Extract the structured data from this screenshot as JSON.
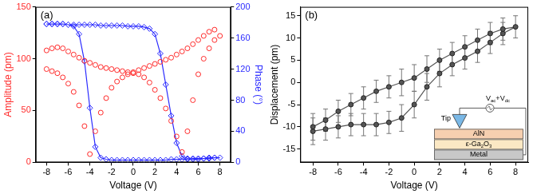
{
  "chart_data": [
    {
      "type": "scatter",
      "title": "(a)",
      "x_label": "Voltage (V)",
      "y_label": "Amplitude (pm)",
      "y2_label": "Phase (°)",
      "x": [
        -8,
        -7.5,
        -7,
        -6.5,
        -6,
        -5.5,
        -5,
        -4.5,
        -4,
        -3.5,
        -3,
        -2.5,
        -2,
        -1.5,
        -1,
        -0.5,
        0,
        0.5,
        1,
        1.5,
        2,
        2.5,
        3,
        3.5,
        4,
        4.5,
        5,
        5.5,
        6,
        6.5,
        7,
        7.5,
        8,
        7.5,
        7,
        6.5,
        6,
        5.5,
        5,
        4.5,
        4,
        3.5,
        3,
        2.5,
        2,
        1.5,
        1,
        0.5,
        0,
        -0.5,
        -1,
        -1.5,
        -2,
        -2.5,
        -3,
        -3.5,
        -4,
        -4.5,
        -5,
        -5.5,
        -6,
        -6.5,
        -7,
        -7.5,
        -8
      ],
      "series": [
        {
          "name": "Amplitude",
          "color": "#ff2a2a",
          "marker": "open circle",
          "line_style": "none",
          "values": [
            108,
            110,
            111,
            110,
            107,
            104,
            101,
            98,
            96,
            94,
            92,
            91,
            90,
            89,
            88,
            87,
            86,
            85,
            82,
            77,
            70,
            62,
            52,
            40,
            25,
            10,
            30,
            60,
            85,
            100,
            110,
            118,
            122,
            128,
            126,
            122,
            118,
            114,
            110,
            107,
            104,
            101,
            99,
            97,
            95,
            93,
            91,
            89,
            87,
            85,
            82,
            78,
            72,
            62,
            48,
            30,
            8,
            35,
            55,
            68,
            76,
            82,
            86,
            88,
            90
          ]
        },
        {
          "name": "Phase",
          "color": "#2a2aff",
          "marker": "open diamond",
          "line_style": "solid",
          "axis": "y2",
          "values": [
            178,
            178,
            178,
            178,
            177,
            177,
            177,
            177,
            177,
            177,
            176,
            176,
            176,
            176,
            176,
            175,
            175,
            175,
            174,
            172,
            165,
            140,
            100,
            60,
            25,
            8,
            5,
            4,
            4,
            5,
            5,
            6,
            6,
            6,
            6,
            5,
            5,
            5,
            4,
            4,
            4,
            4,
            3,
            3,
            3,
            3,
            3,
            3,
            3,
            3,
            3,
            3,
            3,
            4,
            6,
            20,
            70,
            130,
            165,
            175,
            177,
            178,
            178,
            178,
            178
          ]
        }
      ],
      "xlim": [
        -9,
        9
      ],
      "xticks": [
        -8,
        -6,
        -4,
        -2,
        0,
        2,
        4,
        6,
        8
      ],
      "ylim": [
        0,
        150
      ],
      "yticks": [
        0,
        50,
        100,
        150
      ],
      "y2lim": [
        0,
        200
      ],
      "y2ticks": [
        0,
        40,
        80,
        120,
        160,
        200
      ],
      "grid": false
    },
    {
      "type": "scatter",
      "title": "(b)",
      "x_label": "Voltage (V)",
      "y_label": "Displacement (pm)",
      "x": [
        -8,
        -7,
        -6,
        -5,
        -4,
        -3,
        -2,
        -1,
        0,
        1,
        2,
        3,
        4,
        5,
        6,
        7,
        8,
        7,
        6,
        5,
        4,
        3,
        2,
        1,
        0,
        -1,
        -2,
        -3,
        -4,
        -5,
        -6,
        -7,
        -8
      ],
      "series": [
        {
          "name": "Displacement",
          "color": "#555555",
          "marker": "filled circle",
          "line_style": "solid",
          "values": [
            -11,
            -10.5,
            -10,
            -9.5,
            -9.5,
            -9.5,
            -9,
            -8,
            -5,
            -1,
            2,
            4,
            5.5,
            7,
            9,
            11,
            12.5,
            12,
            11,
            9.5,
            8,
            6.5,
            5,
            3,
            1,
            0,
            -1,
            -2,
            -3.5,
            -5,
            -6.5,
            -8.5,
            -10
          ],
          "errors": [
            3,
            2.5,
            2.5,
            2.5,
            2.5,
            2.5,
            2.5,
            3,
            3,
            3,
            3,
            2.5,
            2.5,
            2.5,
            2.5,
            2.5,
            2.5,
            2.5,
            2.5,
            2.5,
            2.5,
            2.5,
            2.5,
            3,
            3,
            3,
            2.5,
            2.5,
            2.5,
            2.5,
            2.5,
            2.5,
            3
          ]
        }
      ],
      "xlim": [
        -9,
        9
      ],
      "xticks": [
        -8,
        -6,
        -4,
        -2,
        0,
        2,
        4,
        6,
        8
      ],
      "ylim": [
        -18,
        17
      ],
      "yticks": [
        -15,
        -10,
        -5,
        0,
        5,
        10,
        15
      ],
      "grid": false,
      "inset": {
        "tip": "Tip",
        "source": [
          {
            "text": "V"
          },
          {
            "text": "ac",
            "sub": true
          },
          {
            "text": "+V"
          },
          {
            "text": "dc",
            "sub": true
          }
        ],
        "layers": [
          [
            {
              "text": "AlN"
            }
          ],
          [
            {
              "text": "ε-Ga"
            },
            {
              "text": "2",
              "sub": true
            },
            {
              "text": "O"
            },
            {
              "text": "3",
              "sub": true
            }
          ],
          [
            {
              "text": "Metal"
            }
          ]
        ]
      }
    }
  ]
}
